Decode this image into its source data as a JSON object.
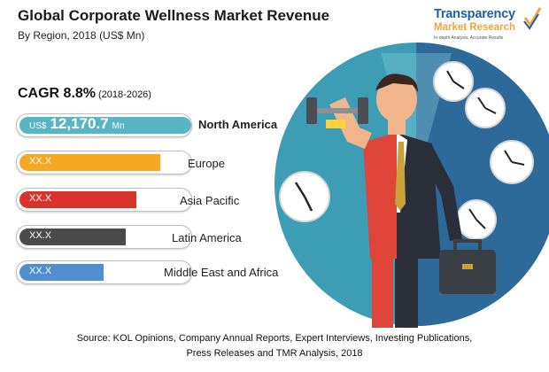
{
  "header": {
    "title": "Global Corporate Wellness Market Revenue",
    "subtitle": "By Region, 2018 (US$ Mn)"
  },
  "logo": {
    "name": "Transparency",
    "sub": "Market Research",
    "tagline": "In-depth Analysis. Accurate Results"
  },
  "cagr": {
    "label": "CAGR 8.8%",
    "period": "(2018-2026)"
  },
  "chart_data": {
    "type": "bar",
    "orientation": "horizontal",
    "title": "Global Corporate Wellness Market Revenue",
    "subtitle": "By Region, 2018 (US$ Mn)",
    "categories": [
      "North America",
      "Europe",
      "Asia Pacific",
      "Latin America",
      "Middle East and Africa"
    ],
    "values": [
      12170.7,
      null,
      null,
      null,
      null
    ],
    "relative_bar_fill": [
      1.0,
      0.82,
      0.68,
      0.62,
      0.49
    ],
    "bar_labels": [
      {
        "currency": "US$",
        "value": "12,170.7",
        "unit": "Mn"
      },
      {
        "value": "XX.X"
      },
      {
        "value": "XX.X"
      },
      {
        "value": "XX.X"
      },
      {
        "value": "XX.X"
      }
    ],
    "colors": [
      "#58b5c4",
      "#f7a822",
      "#d9342b",
      "#4a4a4a",
      "#4f8fd0"
    ],
    "legend": "none",
    "grid": false
  },
  "source": {
    "line1": "Source: KOL Opinions, Company Annual Reports, Expert Interviews, Investing Publications,",
    "line2": "Press Releases and TMR Analysis, 2018"
  }
}
